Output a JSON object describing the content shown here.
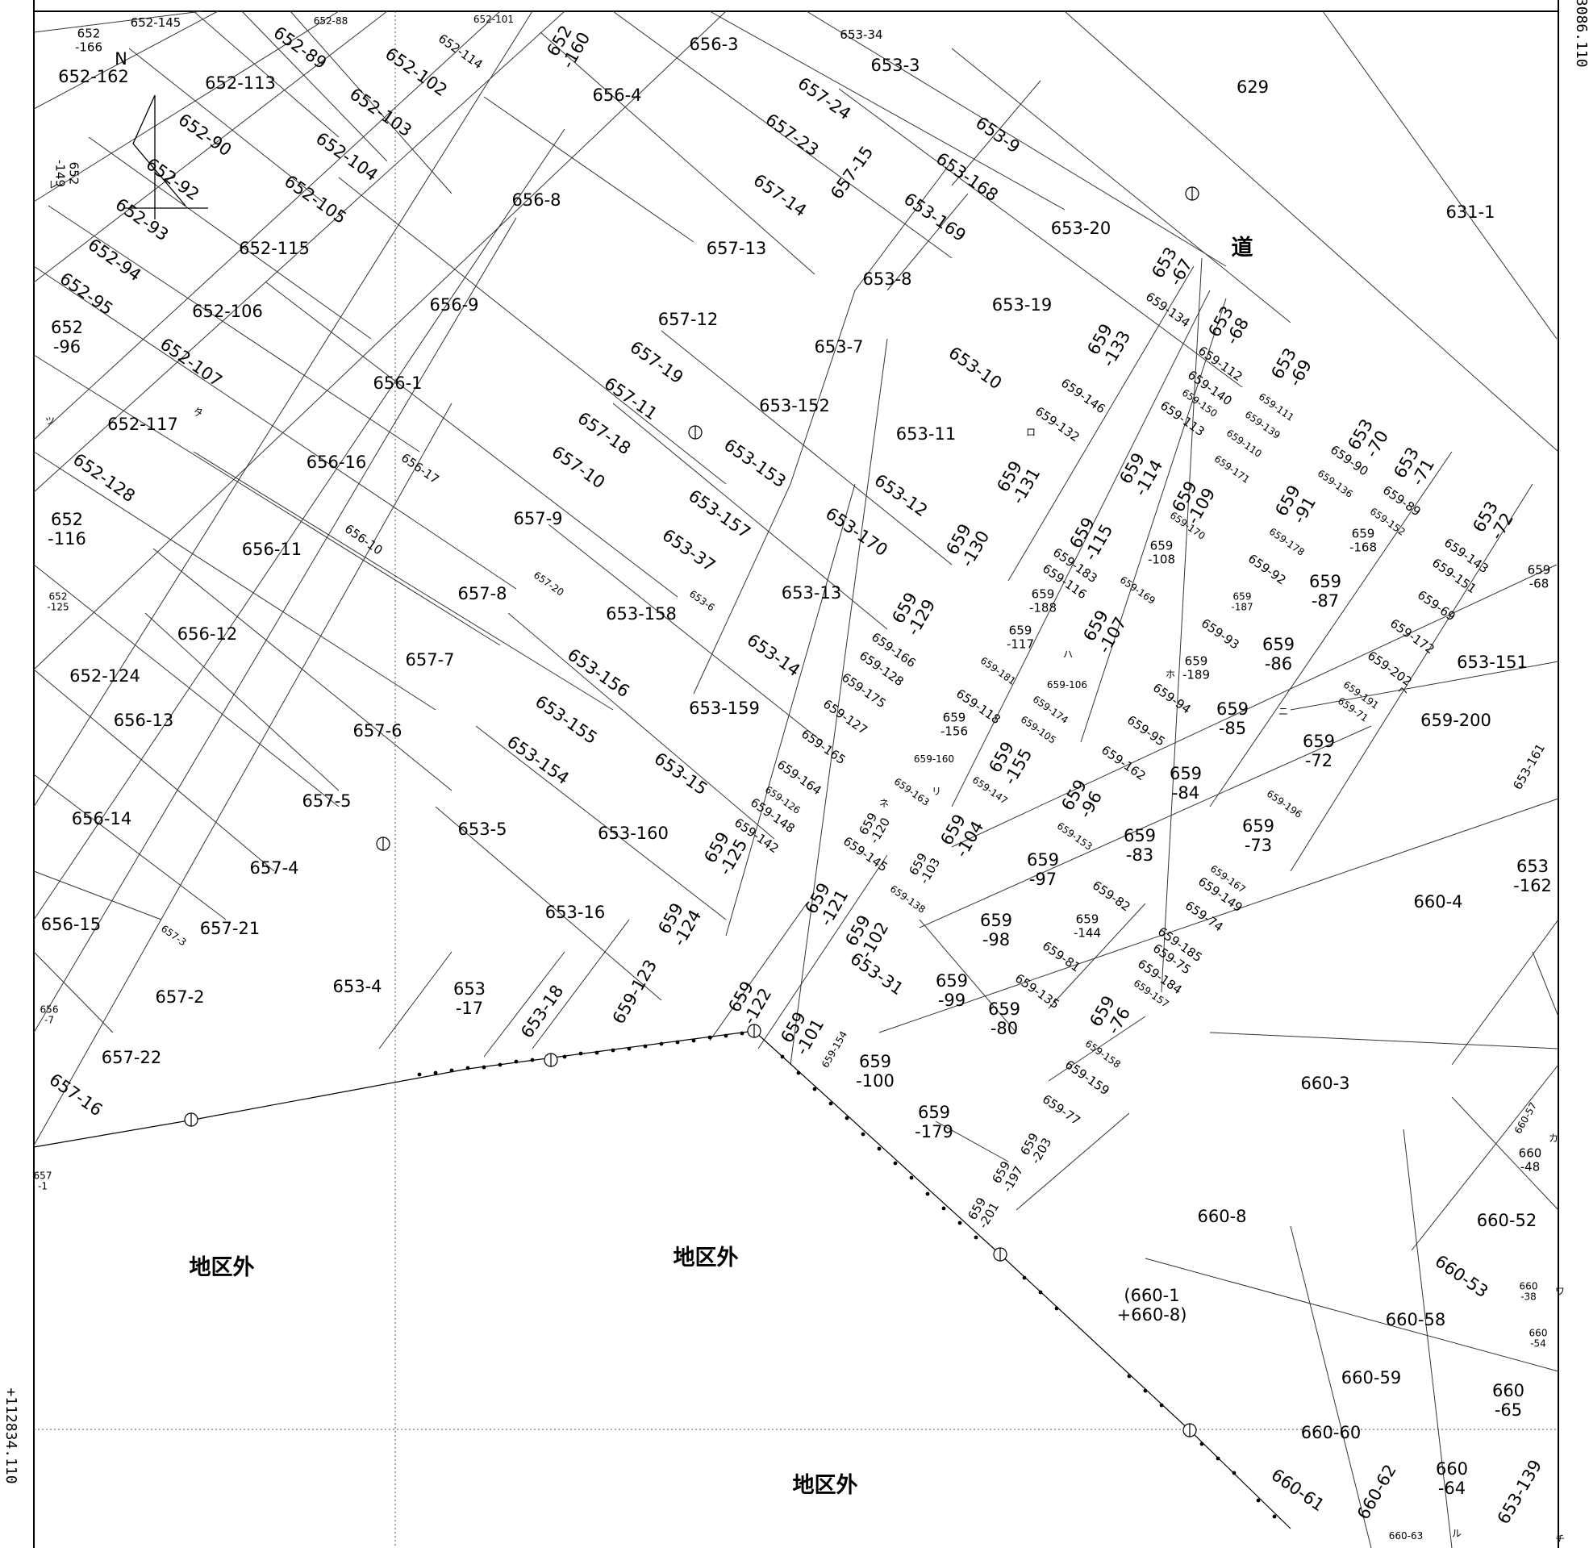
{
  "map": {
    "coords": {
      "top_right": "+113086.110",
      "bottom_left": "+112834.110"
    },
    "north_label": "N",
    "area_labels": {
      "outside_left": "地区外",
      "outside_center": "地区外",
      "outside_bottom": "地区外",
      "road": "道",
      "merged_parcel": "(660-1\n+660-8)"
    },
    "ticks": {
      "re": "レ",
      "tsu": "ツ",
      "ta": "タ",
      "ne": "ネ",
      "ri": "リ",
      "ha": "ハ",
      "ho": "ホ",
      "ro": "ロ",
      "ka": "カ",
      "wa": "ワ",
      "ru": "ル",
      "chi": "チ",
      "ni": "ニ",
      "he": "ヘ"
    },
    "parcels": {
      "p652_145": "652-145",
      "p652_166": "652\n-166",
      "p652_88": "652-88",
      "p652_101": "652-101",
      "p652_162": "652-162",
      "p652_113": "652-113",
      "p652_89": "652-89",
      "p652_102": "652-102",
      "p652_114": "652-114",
      "p652_160": "652\n-160",
      "p652_103": "652-103",
      "p652_90": "652-90",
      "p652_149": "652\n-149",
      "p652_92": "652-92",
      "p652_104": "652-104",
      "p652_105": "652-105",
      "p652_93": "652-93",
      "p652_115": "652-115",
      "p652_94": "652-94",
      "p652_95": "652-95",
      "p652_106": "652-106",
      "p652_96": "652\n-96",
      "p652_107": "652-107",
      "p652_117": "652-117",
      "p652_128": "652-128",
      "p652_116": "652\n-116",
      "p652_125": "652\n-125",
      "p652_124": "652-124",
      "p656_3": "656-3",
      "p656_4": "656-4",
      "p656_8": "656-8",
      "p656_9": "656-9",
      "p656_1": "656-1",
      "p656_16": "656-16",
      "p656_17": "656-17",
      "p656_10": "656-10",
      "p656_11": "656-11",
      "p656_12": "656-12",
      "p656_13": "656-13",
      "p656_14": "656-14",
      "p656_15": "656-15",
      "p656_7": "656\n-7",
      "p657_24": "657-24",
      "p657_23": "657-23",
      "p657_15": "657-15",
      "p657_14": "657-14",
      "p657_13": "657-13",
      "p657_12": "657-12",
      "p657_19": "657-19",
      "p657_11": "657-11",
      "p657_18": "657-18",
      "p657_10": "657-10",
      "p657_9": "657-9",
      "p657_20": "657-20",
      "p657_8": "657-8",
      "p657_7": "657-7",
      "p657_6": "657-6",
      "p657_5": "657-5",
      "p657_4": "657-4",
      "p657_21": "657-21",
      "p657_3": "657-3",
      "p657_2": "657-2",
      "p657_22": "657-22",
      "p657_16": "657-16",
      "p657_1": "657\n-1",
      "p653_34": "653-34",
      "p653_3": "653-3",
      "p653_9": "653-9",
      "p653_168": "653-168",
      "p653_169": "653-169",
      "p653_20": "653-20",
      "p653_8": "653-8",
      "p653_19": "653-19",
      "p653_67": "653\n-67",
      "p653_7": "653-7",
      "p653_10": "653-10",
      "p653_152": "653-152",
      "p653_11": "653-11",
      "p653_153": "653-153",
      "p653_12": "653-12",
      "p653_157": "653-157",
      "p653_170": "653-170",
      "p653_37": "653-37",
      "p653_13": "653-13",
      "p653_6": "653-6",
      "p653_158": "653-158",
      "p653_14": "653-14",
      "p653_156": "653-156",
      "p653_159": "653-159",
      "p653_155": "653-155",
      "p653_154": "653-154",
      "p653_15": "653-15",
      "p653_5": "653-5",
      "p653_160": "653-160",
      "p653_16": "653-16",
      "p653_4": "653-4",
      "p653_17": "653\n-17",
      "p653_18": "653-18",
      "p653_31": "653-31",
      "p653_68": "653\n-68",
      "p653_69": "653\n-69",
      "p653_70": "653\n-70",
      "p653_71": "653\n-71",
      "p653_72": "653\n-72",
      "p653_151": "653-151",
      "p653_161": "653-161",
      "p653_162": "653\n-162",
      "p653_139": "653-139",
      "p629": "629",
      "p631_1": "631-1",
      "p659_134": "659-134",
      "p659_133": "659\n-133",
      "p659_146": "659-146",
      "p659_132": "659-132",
      "p659_131": "659\n-131",
      "p659_130": "659\n-130",
      "p659_129": "659\n-129",
      "p659_112": "659-112",
      "p659_140": "659-140",
      "p659_150": "659-150",
      "p659_111": "659-111",
      "p659_113": "659-113",
      "p659_139": "659-139",
      "p659_110": "659-110",
      "p659_171": "659-171",
      "p659_114": "659\n-114",
      "p659_109": "659\n-109",
      "p659_170": "659-170",
      "p659_115": "659\n-115",
      "p659_108": "659\n-108",
      "p659_183": "659-183",
      "p659_116": "659-116",
      "p659_188": "659\n-188",
      "p659_169": "659-169",
      "p659_107": "659\n-107",
      "p659_117": "659\n-117",
      "p659_181": "659-181",
      "p659_106": "659-106",
      "p659_166": "659-166",
      "p659_128": "659-128",
      "p659_175": "659-175",
      "p659_127": "659-127",
      "p659_118": "659-118",
      "p659_174": "659-174",
      "p659_105": "659-105",
      "p659_156": "659\n-156",
      "p659_155": "659\n-155",
      "p659_165": "659-165",
      "p659_160": "659-160",
      "p659_164": "659-164",
      "p659_147": "659-147",
      "p659_163": "659-163",
      "p659_126": "659-126",
      "p659_148": "659-148",
      "p659_142": "659-142",
      "p659_120": "659\n-120",
      "p659_104": "659\n-104",
      "p659_125": "659\n-125",
      "p659_145": "659-145",
      "p659_103": "659\n-103",
      "p659_138": "659-138",
      "p659_121": "659\n-121",
      "p659_124": "659\n-124",
      "p659_102": "659\n-102",
      "p659_123": "659-123",
      "p659_122": "659\n-122",
      "p659_101": "659\n-101",
      "p659_154": "659-154",
      "p659_100": "659\n-100",
      "p659_179": "659\n-179",
      "p659_90": "659-90",
      "p659_136": "659-136",
      "p659_89": "659-89",
      "p659_152": "659-152",
      "p659_91": "659\n-91",
      "p659_168": "659\n-168",
      "p659_178": "659-178",
      "p659_92": "659-92",
      "p659_187": "659\n-187",
      "p659_87": "659\n-87",
      "p659_93": "659-93",
      "p659_86": "659\n-86",
      "p659_189": "659\n-189",
      "p659_94": "659-94",
      "p659_85": "659\n-85",
      "p659_95": "659-95",
      "p659_162": "659-162",
      "p659_84": "659\n-84",
      "p659_96": "659\n-96",
      "p659_153": "659-153",
      "p659_83": "659\n-83",
      "p659_97": "659\n-97",
      "p659_82": "659-82",
      "p659_144": "659\n-144",
      "p659_98": "659\n-98",
      "p659_81": "659-81",
      "p659_99": "659\n-99",
      "p659_135": "659-135",
      "p659_80": "659\n-80",
      "p659_143": "659-143",
      "p659_151": "659-151",
      "p659_68": "659\n-68",
      "p659_69": "659-69",
      "p659_172": "659-172",
      "p659_202": "659-202",
      "p659_191": "659-191",
      "p659_71": "659-71",
      "p659_200": "659-200",
      "p659_72": "659\n-72",
      "p659_196": "659-196",
      "p659_73": "659\n-73",
      "p659_167": "659-167",
      "p659_149": "659-149",
      "p659_74": "659-74",
      "p659_185": "659-185",
      "p659_75": "659-75",
      "p659_184": "659-184",
      "p659_157": "659-157",
      "p659_76": "659\n-76",
      "p659_158": "659-158",
      "p659_159": "659-159",
      "p659_77": "659-77",
      "p659_203": "659\n-203",
      "p659_197": "659\n-197",
      "p659_201": "659\n-201",
      "p660_4": "660-4",
      "p660_3": "660-3",
      "p660_8": "660-8",
      "p660_57": "660-57",
      "p660_48": "660\n-48",
      "p660_52": "660-52",
      "p660_53": "660-53",
      "p660_38": "660\n-38",
      "p660_54": "660\n-54",
      "p660_58": "660-58",
      "p660_59": "660-59",
      "p660_65": "660\n-65",
      "p660_60": "660-60",
      "p660_61": "660-61",
      "p660_62": "660-62",
      "p660_64": "660\n-64",
      "p660_63": "660-63"
    }
  }
}
